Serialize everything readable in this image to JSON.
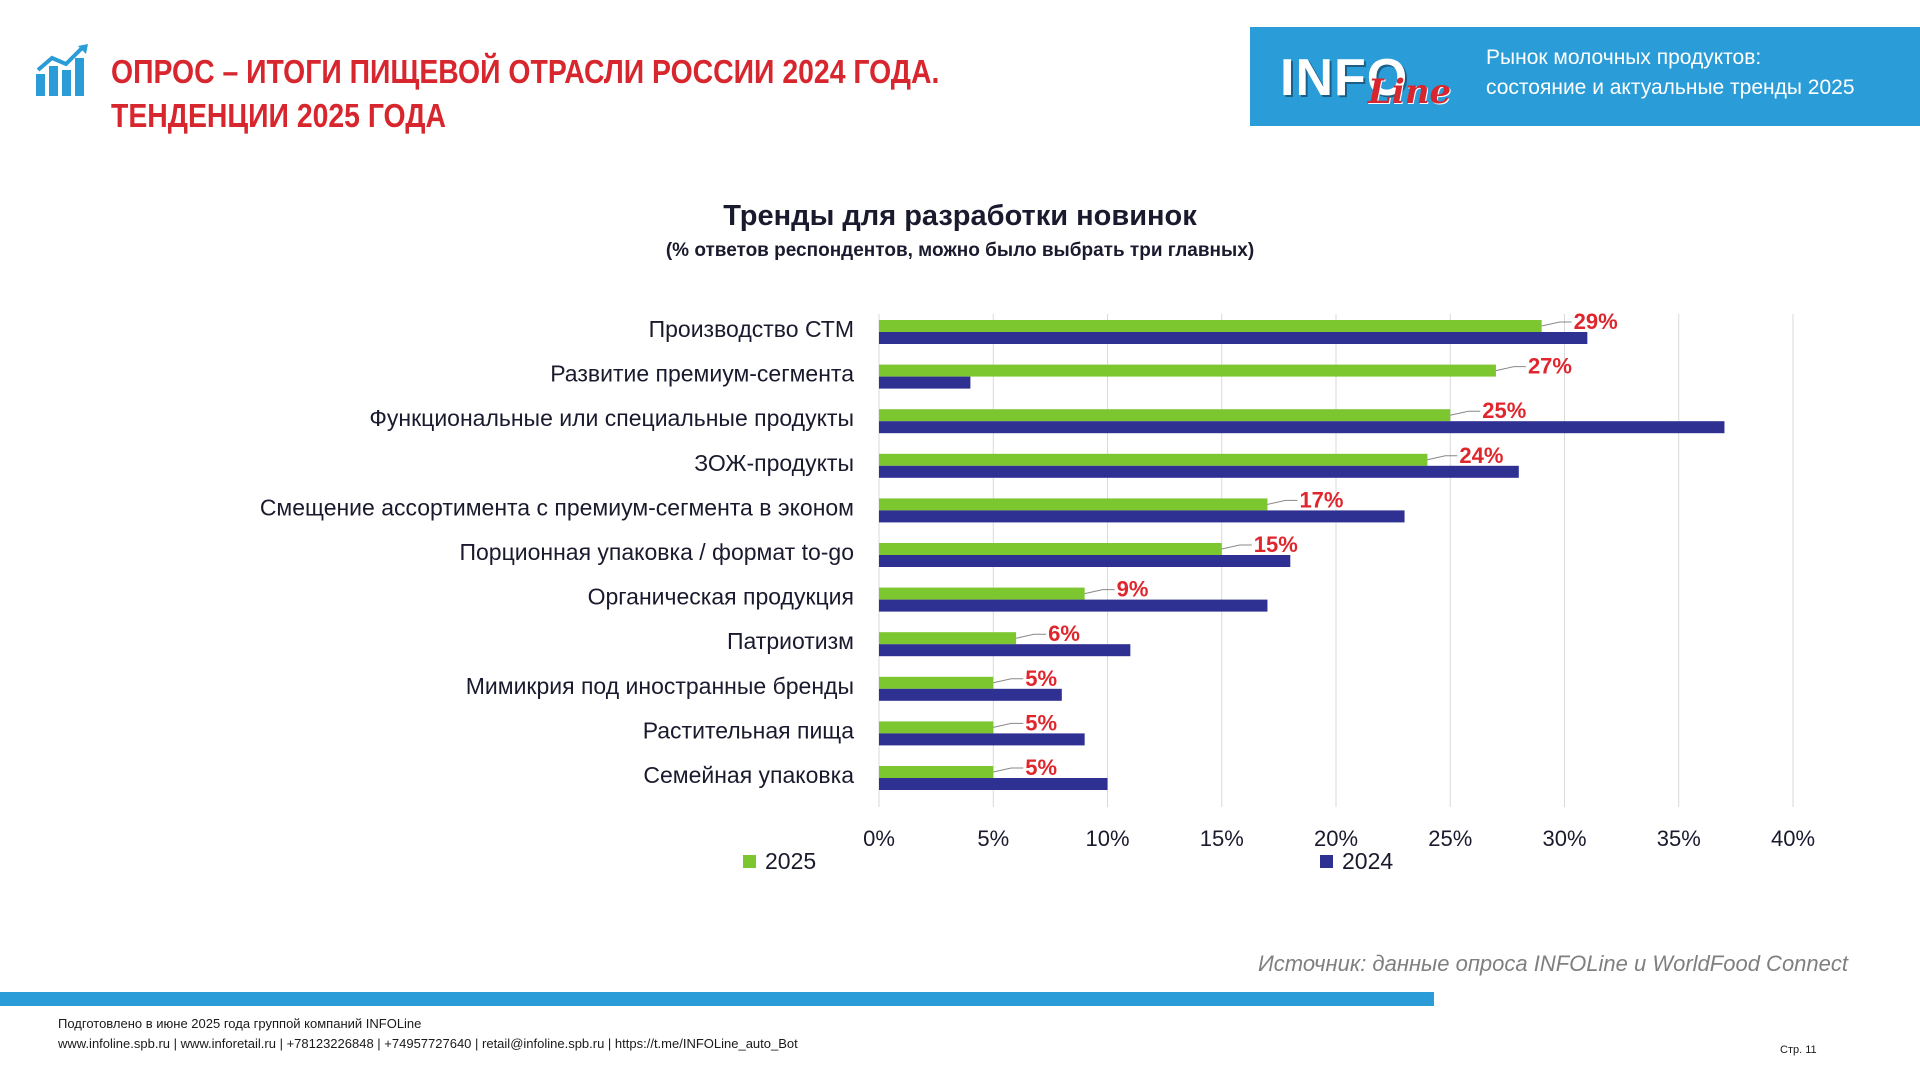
{
  "header": {
    "title_line1": "ОПРОС – ИТОГИ ПИЩЕВОЙ ОТРАСЛИ РОССИИ 2024 ГОДА.",
    "title_line2": "ТЕНДЕНЦИИ 2025 ГОДА",
    "brand_main": "INFO",
    "brand_script": "Line",
    "banner_line1": "Рынок молочных продуктов:",
    "banner_line2": "состояние и актуальные тренды 2025"
  },
  "colors": {
    "accent_red": "#d7262d",
    "banner_blue": "#2a9dd8",
    "series_2025": "#7cc72f",
    "series_2024": "#2e3092",
    "label_red": "#e0262d"
  },
  "chart_data": {
    "type": "bar",
    "orientation": "horizontal",
    "title": "Тренды для разработки новинок",
    "subtitle": "(% ответов респондентов, можно было выбрать три главных)",
    "categories": [
      "Производство СТМ",
      "Развитие премиум-сегмента",
      "Функциональные или специальные продукты",
      "ЗОЖ-продукты",
      "Смещение ассортимента с премиум-сегмента в эконом",
      "Порционная упаковка / формат to-go",
      "Органическая продукция",
      "Патриотизм",
      "Мимикрия под иностранные бренды",
      "Растительная пища",
      "Семейная упаковка"
    ],
    "series": [
      {
        "name": "2025",
        "values": [
          29,
          27,
          25,
          24,
          17,
          15,
          9,
          6,
          5,
          5,
          5
        ]
      },
      {
        "name": "2024",
        "values": [
          31,
          4,
          37,
          28,
          23,
          18,
          17,
          11,
          8,
          9,
          10
        ]
      }
    ],
    "data_labels": [
      "29%",
      "27%",
      "25%",
      "24%",
      "17%",
      "15%",
      "9%",
      "6%",
      "5%",
      "5%",
      "5%"
    ],
    "x_ticks": [
      "0%",
      "5%",
      "10%",
      "15%",
      "20%",
      "25%",
      "30%",
      "35%",
      "40%"
    ],
    "xlim": [
      0,
      40
    ],
    "grid": true,
    "legend": [
      "2025",
      "2024"
    ],
    "legend_position": "bottom"
  },
  "source": "Источник: данные опроса INFOLine и WorldFood Connect",
  "footer": {
    "line1": "Подготовлено в июне 2025 года группой компаний INFOLine",
    "line2": "www.infoline.spb.ru | www.inforetail.ru | +78123226848 | +74957727640 | retail@infoline.spb.ru | https://t.me/INFOLine_auto_Bot",
    "page": "Стр. 11"
  }
}
